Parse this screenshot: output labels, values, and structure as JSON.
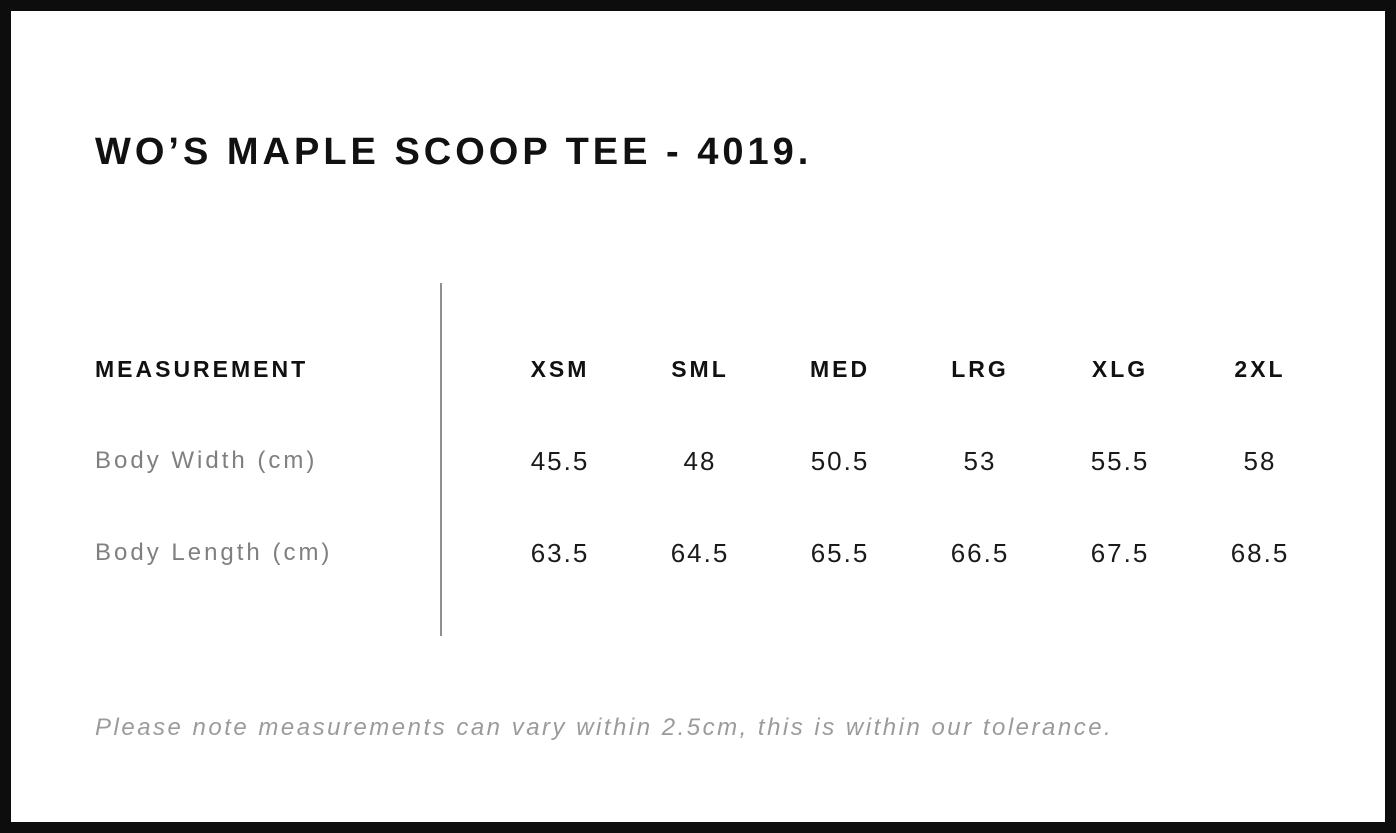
{
  "page": {
    "title": "WO’S MAPLE SCOOP TEE - 4019.",
    "note": "Please note measurements can vary within 2.5cm, this is within our tolerance."
  },
  "size_table": {
    "label_header": "MEASUREMENT",
    "size_headers": [
      "XSM",
      "SML",
      "MED",
      "LRG",
      "XLG",
      "2XL"
    ],
    "rows": [
      {
        "label": "Body Width (cm)",
        "values": [
          "45.5",
          "48",
          "50.5",
          "53",
          "55.5",
          "58"
        ]
      },
      {
        "label": "Body Length (cm)",
        "values": [
          "63.5",
          "64.5",
          "65.5",
          "66.5",
          "67.5",
          "68.5"
        ]
      }
    ]
  },
  "colors": {
    "frame_border": "#0d0d0d",
    "heading_text": "#111111",
    "value_text": "#1a1a1a",
    "row_label_text": "#7f7f7f",
    "note_text": "#9b9b9b",
    "divider": "#8f8f8f",
    "background": "#ffffff"
  }
}
